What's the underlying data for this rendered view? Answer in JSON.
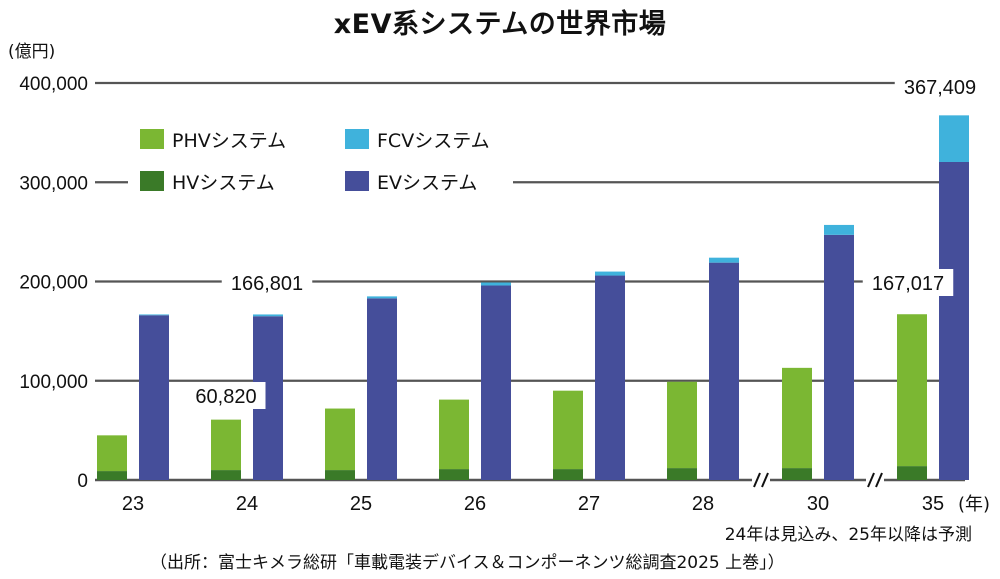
{
  "chart_data": {
    "type": "bar",
    "stacked": true,
    "title": "xEV系システムの世界市場",
    "unit_label": "(億円)",
    "categories": [
      "23",
      "24",
      "25",
      "26",
      "27",
      "28",
      "30",
      "35"
    ],
    "x_unit": "(年)",
    "ylim": [
      0,
      400000
    ],
    "yticks": [
      "0",
      "100,000",
      "200,000",
      "300,000",
      "400,000"
    ],
    "ytick_values": [
      0,
      100000,
      200000,
      300000,
      400000
    ],
    "grid": true,
    "axis_breaks_after": [
      "28",
      "30"
    ],
    "legend_placement": "top-left",
    "series": [
      {
        "name": "HVシステム",
        "group": "left",
        "color": "#3a7a28",
        "values": [
          9000,
          10000,
          10000,
          11000,
          11000,
          12000,
          12000,
          14000
        ]
      },
      {
        "name": "PHVシステム",
        "group": "left",
        "color": "#7bb733",
        "values": [
          36000,
          50820,
          62000,
          70000,
          79000,
          87000,
          101000,
          153017
        ]
      },
      {
        "name": "EVシステム",
        "group": "right",
        "color": "#454e9a",
        "values": [
          166000,
          165000,
          183000,
          196000,
          206000,
          219000,
          247000,
          320409
        ]
      },
      {
        "name": "FCVシステム",
        "group": "right",
        "color": "#3fb2dc",
        "values": [
          801,
          1801,
          2000,
          3000,
          4000,
          5000,
          10000,
          47000
        ]
      }
    ],
    "annotations": {
      "a24_total": "166,801",
      "a24_phv": "60,820",
      "a35_total": "367,409",
      "a35_phv": "167,017"
    },
    "note": "24年は見込み、25年以降は予測",
    "source": "（出所：富士キメラ総研「車載電装デバイス＆コンポーネンツ総調査2025 上巻」）"
  }
}
